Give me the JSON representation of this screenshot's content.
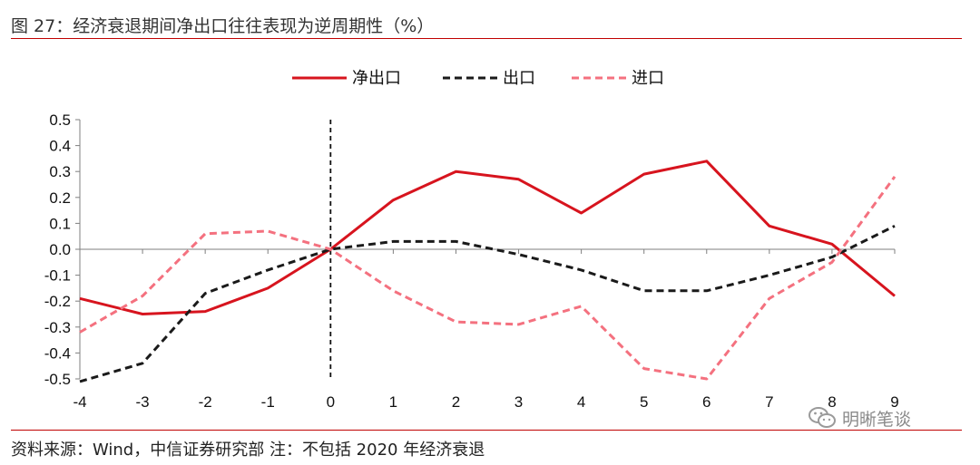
{
  "header": {
    "title": "图 27：经济衰退期间净出口往往表现为逆周期性（%）"
  },
  "footer": {
    "source": "资料来源：Wind，中信证券研究部  注：不包括 2020 年经济衰退",
    "watermark": "明晰笔谈"
  },
  "chart_data": {
    "type": "line",
    "title": "图 27：经济衰退期间净出口往往表现为逆周期性（%）",
    "xlabel": "",
    "ylabel": "",
    "x": [
      -4,
      -3,
      -2,
      -1,
      0,
      1,
      2,
      3,
      4,
      5,
      6,
      7,
      8,
      9
    ],
    "xlim": [
      -4,
      9
    ],
    "ylim": [
      -0.5,
      0.5
    ],
    "yticks": [
      0.5,
      0.4,
      0.3,
      0.2,
      0.1,
      0.0,
      -0.1,
      -0.2,
      -0.3,
      -0.4,
      -0.5
    ],
    "ytick_labels": [
      "0.5",
      "0.4",
      "0.3",
      "0.2",
      "0.1",
      "0.0",
      "-0.1",
      "-0.2",
      "-0.3",
      "-0.4",
      "-0.5"
    ],
    "xtick_labels": [
      "-4",
      "-3",
      "-2",
      "-1",
      "0",
      "1",
      "2",
      "3",
      "4",
      "5",
      "6",
      "7",
      "8",
      "9"
    ],
    "vline_x": 0,
    "legend_position": "top-center",
    "series": [
      {
        "name": "净出口",
        "color": "#d7141e",
        "dash": "solid",
        "values": [
          -0.19,
          -0.25,
          -0.24,
          -0.15,
          0.0,
          0.19,
          0.3,
          0.27,
          0.14,
          0.29,
          0.34,
          0.09,
          0.02,
          -0.18
        ]
      },
      {
        "name": "出口",
        "color": "#1a1a1a",
        "dash": "dash",
        "values": [
          -0.51,
          -0.44,
          -0.17,
          -0.08,
          0.0,
          0.03,
          0.03,
          -0.02,
          -0.08,
          -0.16,
          -0.16,
          -0.1,
          -0.03,
          0.09
        ]
      },
      {
        "name": "进口",
        "color": "#f4717f",
        "dash": "dash",
        "values": [
          -0.32,
          -0.18,
          0.06,
          0.07,
          0.0,
          -0.16,
          -0.28,
          -0.29,
          -0.22,
          -0.46,
          -0.5,
          -0.19,
          -0.05,
          0.28
        ]
      }
    ]
  }
}
